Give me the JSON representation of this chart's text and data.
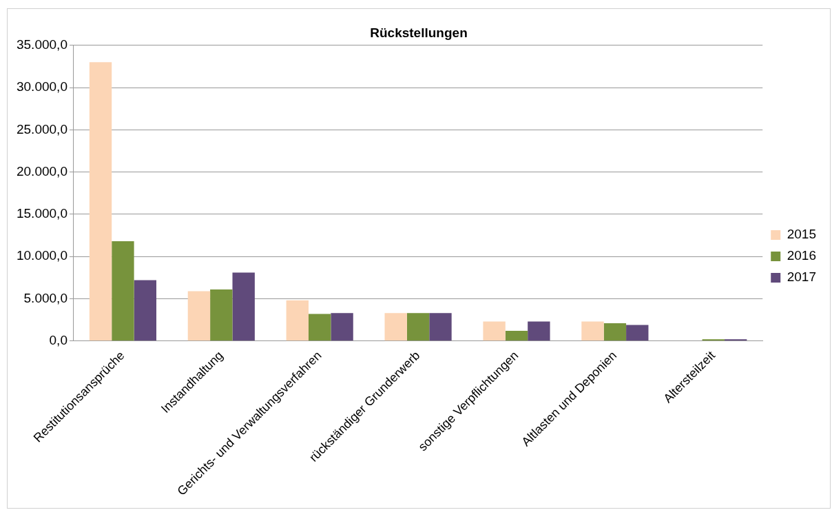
{
  "chart_data": {
    "type": "bar",
    "title": "Rückstellungen",
    "categories": [
      "Restitutionsansprüche",
      "Instandhaltung",
      "Gerichts- und Verwaltungsverfahren",
      "rückständiger Grunderwerb",
      "sonstige Verpflichtungen",
      "Altlasten und Deponien",
      "Altersteilzeit"
    ],
    "series": [
      {
        "name": "2015",
        "color": "#fcd5b5",
        "values": [
          33000,
          5900,
          4800,
          3300,
          2300,
          2300,
          0
        ]
      },
      {
        "name": "2016",
        "color": "#77933c",
        "values": [
          11800,
          6100,
          3200,
          3300,
          1200,
          2100,
          200
        ]
      },
      {
        "name": "2017",
        "color": "#604a7b",
        "values": [
          7200,
          8100,
          3300,
          3300,
          2300,
          1900,
          200
        ]
      }
    ],
    "ylim": [
      0,
      35000
    ],
    "yticks": [
      {
        "value": 0,
        "label": "0,0"
      },
      {
        "value": 5000,
        "label": "5.000,0"
      },
      {
        "value": 10000,
        "label": "10.000,0"
      },
      {
        "value": 15000,
        "label": "15.000,0"
      },
      {
        "value": 20000,
        "label": "20.000,0"
      },
      {
        "value": 25000,
        "label": "25.000,0"
      },
      {
        "value": 30000,
        "label": "30.000,0"
      },
      {
        "value": 35000,
        "label": "35.000,0"
      }
    ],
    "grid": "y",
    "legend": "right"
  }
}
